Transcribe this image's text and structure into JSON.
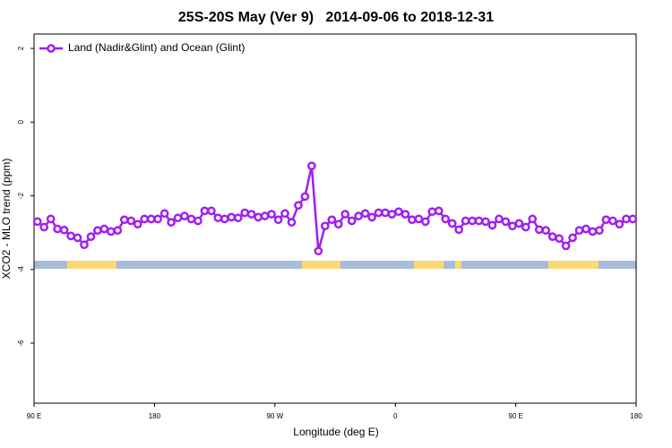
{
  "chart_data": {
    "type": "line",
    "title": "25S-20S May (Ver 9)   2014-09-06 to 2018-12-31",
    "xlabel": "Longitude (deg E)",
    "ylabel": "XCO2 - MLO trend (ppm)",
    "xlim": [
      90,
      540
    ],
    "ylim": [
      -7.63,
      2.39
    ],
    "xticks": [
      {
        "value": 90,
        "label": "90 E"
      },
      180,
      {
        "value": 270,
        "label": "90 W"
      },
      {
        "value": 360,
        "label": "0"
      },
      {
        "value": 450,
        "label": "90 E"
      },
      {
        "value": 540,
        "label": "180"
      }
    ],
    "yticks": [
      2,
      0,
      -2,
      -4,
      -6
    ],
    "grid": false,
    "legend": "upper left",
    "series": [
      {
        "name": "Land (Nadir&Glint) and Ocean (Glint)",
        "color": "#a020f0",
        "x": [
          92.5,
          97.5,
          102.5,
          107.5,
          112.5,
          117.5,
          122.5,
          127.5,
          132.5,
          137.5,
          142.5,
          147.5,
          152.5,
          157.5,
          162.5,
          167.5,
          172.5,
          177.5,
          182.5,
          187.5,
          192.5,
          197.5,
          202.5,
          207.5,
          212.5,
          217.5,
          222.5,
          227.5,
          232.5,
          237.5,
          242.5,
          247.5,
          252.5,
          257.5,
          262.5,
          267.5,
          272.5,
          277.5,
          282.5,
          287.5,
          292.5,
          297.5,
          302.5,
          307.5,
          312.5,
          317.5,
          322.5,
          327.5,
          332.5,
          337.5,
          342.5,
          347.5,
          352.5,
          357.5,
          362.5,
          367.5,
          372.5,
          377.5,
          382.5,
          387.5,
          392.5,
          397.5,
          402.5,
          407.5,
          412.5,
          417.5,
          422.5,
          427.5,
          432.5,
          437.5,
          442.5,
          447.5,
          452.5,
          457.5,
          462.5,
          467.5,
          472.5,
          477.5,
          482.5,
          487.5,
          492.5,
          497.5,
          502.5,
          507.5,
          512.5,
          517.5,
          522.5,
          527.5,
          532.5,
          537.5
        ],
        "values": [
          -2.7,
          -2.85,
          -2.63,
          -2.9,
          -2.93,
          -3.09,
          -3.14,
          -3.33,
          -3.11,
          -2.94,
          -2.9,
          -2.97,
          -2.94,
          -2.65,
          -2.68,
          -2.77,
          -2.63,
          -2.63,
          -2.63,
          -2.48,
          -2.72,
          -2.6,
          -2.55,
          -2.63,
          -2.68,
          -2.41,
          -2.41,
          -2.6,
          -2.63,
          -2.58,
          -2.6,
          -2.46,
          -2.5,
          -2.58,
          -2.55,
          -2.5,
          -2.65,
          -2.48,
          -2.72,
          -2.26,
          -2.02,
          -1.19,
          -3.5,
          -2.82,
          -2.65,
          -2.77,
          -2.5,
          -2.68,
          -2.55,
          -2.48,
          -2.58,
          -2.46,
          -2.46,
          -2.5,
          -2.43,
          -2.5,
          -2.65,
          -2.63,
          -2.7,
          -2.43,
          -2.41,
          -2.63,
          -2.75,
          -2.92,
          -2.68,
          -2.68,
          -2.68,
          -2.7,
          -2.8,
          -2.63,
          -2.7,
          -2.82,
          -2.75,
          -2.85,
          -2.63,
          -2.92,
          -2.94,
          -3.11,
          -3.16,
          -3.36,
          -3.14,
          -2.94,
          -2.9,
          -2.97,
          -2.94,
          -2.65,
          -2.68,
          -2.77,
          -2.63,
          -2.63
        ]
      }
    ]
  }
}
